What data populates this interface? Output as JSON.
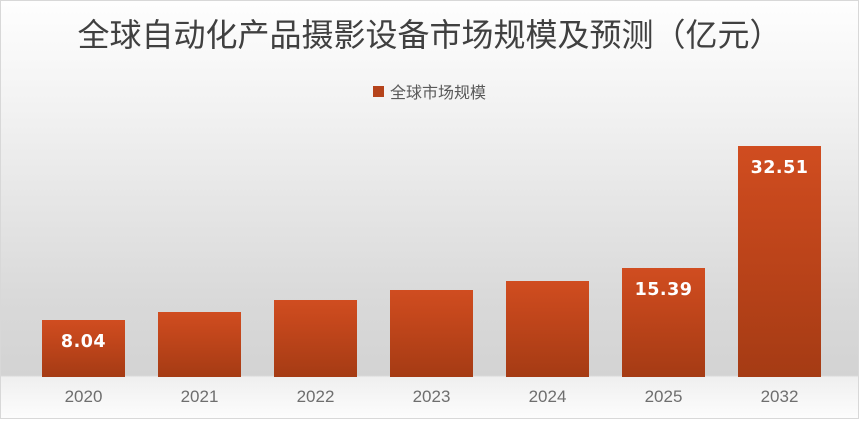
{
  "chart_data": {
    "type": "bar",
    "title": "全球自动化产品摄影设备市场规模及预测（亿元）",
    "legend_label": "全球市场规模",
    "legend_position": "top",
    "grid": false,
    "categories": [
      "2020",
      "2021",
      "2022",
      "2023",
      "2024",
      "2025",
      "2032"
    ],
    "series": [
      {
        "name": "全球市场规模",
        "values": [
          8.04,
          9.2,
          10.9,
          12.3,
          13.5,
          15.39,
          32.51
        ]
      }
    ],
    "data_labels": [
      "8.04",
      "",
      "",
      "",
      "",
      "15.39",
      "32.51"
    ],
    "xlabel": "",
    "ylabel": "",
    "ylim": [
      0,
      33
    ]
  },
  "colors": {
    "bar_top": "#d04d20",
    "bar_bottom": "#a53b14",
    "legend_swatch": "#b5431b",
    "title_text": "#404040",
    "tick_text": "#6e6e6e",
    "value_text": "#ffffff"
  }
}
